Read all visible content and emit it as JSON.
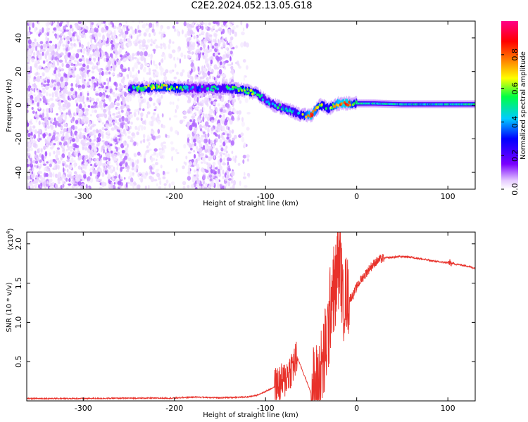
{
  "title": "C2E2.2024.052.13.05.G18",
  "chart_data": [
    {
      "type": "heatmap",
      "xlabel": "Height of straight line (km)",
      "ylabel": "Frequency (Hz)",
      "xlim": [
        -362,
        130
      ],
      "ylim": [
        -50,
        50
      ],
      "xticks": [
        -300,
        -200,
        -100,
        0,
        100
      ],
      "xtick_labels": [
        "-300",
        "-200",
        "-100",
        "0",
        "100"
      ],
      "yticks": [
        -40,
        -20,
        0,
        20,
        40
      ],
      "ytick_labels": [
        "-40",
        "-20",
        "0",
        "20",
        "40"
      ],
      "colorbar": {
        "label": "Normalized spectral amplitude",
        "range": [
          0,
          1
        ],
        "ticks": [
          0.0,
          0.2,
          0.4,
          0.6,
          0.8
        ],
        "tick_labels": [
          "0.0",
          "0.2",
          "0.4",
          "0.6",
          "0.8"
        ],
        "colormap": [
          "#ffffff",
          "#e6ccff",
          "#7a00ff",
          "#0000ff",
          "#00ccff",
          "#00ff44",
          "#ffff00",
          "#ff8800",
          "#ff0000",
          "#ff0088"
        ]
      },
      "ridge": {
        "x": [
          -250,
          -235,
          -215,
          -195,
          -180,
          -160,
          -140,
          -125,
          -110,
          -100,
          -90,
          -80,
          -70,
          -60,
          -50,
          -40,
          -30,
          -20,
          -10,
          0,
          20,
          50,
          80,
          110,
          130
        ],
        "y": [
          10,
          10,
          11,
          10,
          10,
          10,
          10,
          9,
          7,
          3,
          0,
          -2,
          -4,
          -6,
          -6,
          0,
          -2,
          1,
          1,
          1,
          1,
          0.5,
          0.5,
          0.5,
          0.5
        ],
        "amplitude": [
          0.5,
          0.55,
          0.65,
          0.6,
          0.4,
          0.45,
          0.5,
          0.6,
          0.55,
          0.45,
          0.5,
          0.45,
          0.5,
          0.55,
          0.85,
          0.6,
          0.55,
          0.8,
          0.85,
          0.5,
          0.45,
          0.45,
          0.45,
          0.45,
          0.5
        ]
      },
      "noise_regions": [
        {
          "x": [
            -362,
            -250
          ],
          "density": "high"
        },
        {
          "x": [
            -250,
            -210
          ],
          "density": "medium"
        },
        {
          "x": [
            -210,
            -185
          ],
          "density": "low"
        },
        {
          "x": [
            -185,
            -135
          ],
          "density": "high"
        },
        {
          "x": [
            -135,
            -118
          ],
          "density": "low"
        }
      ]
    },
    {
      "type": "line",
      "xlabel": "Height of straight line (km)",
      "ylabel": "SNR (10 * v/v)",
      "y_multiplier": "(x10",
      "y_multiplier_exp": "4",
      "y_multiplier_close": ")",
      "xlim": [
        -362,
        130
      ],
      "ylim": [
        0,
        2.15
      ],
      "xticks": [
        -300,
        -200,
        -100,
        0,
        100
      ],
      "xtick_labels": [
        "-300",
        "-200",
        "-100",
        "0",
        "100"
      ],
      "yticks": [
        0.5,
        1.0,
        1.5,
        2.0
      ],
      "ytick_labels": [
        "0.5",
        "1.0",
        "1.5",
        "2.0"
      ],
      "color": "#e8312a",
      "x": [
        -362,
        -300,
        -250,
        -200,
        -180,
        -150,
        -120,
        -110,
        -100,
        -90,
        -80,
        -75,
        -70,
        -65,
        -60,
        -55,
        -50,
        -45,
        -40,
        -35,
        -30,
        -27,
        -24,
        -21,
        -18,
        -15,
        -12,
        -8,
        -4,
        0,
        5,
        10,
        15,
        20,
        25,
        30,
        40,
        50,
        60,
        70,
        80,
        90,
        100,
        110,
        120,
        130
      ],
      "y": [
        0.03,
        0.03,
        0.035,
        0.035,
        0.05,
        0.04,
        0.05,
        0.07,
        0.12,
        0.18,
        0.25,
        0.35,
        0.45,
        0.55,
        0.4,
        0.25,
        0.1,
        0.15,
        0.3,
        0.6,
        1.0,
        1.5,
        1.35,
        1.7,
        1.8,
        1.2,
        1.4,
        1.3,
        1.35,
        1.45,
        1.55,
        1.62,
        1.7,
        1.76,
        1.8,
        1.82,
        1.83,
        1.84,
        1.83,
        1.81,
        1.79,
        1.77,
        1.76,
        1.74,
        1.72,
        1.69
      ],
      "spikes": [
        {
          "x": [
            -90,
            -65
          ],
          "amp": 0.25
        },
        {
          "x": [
            -50,
            -20
          ],
          "amp": 0.6
        },
        {
          "x": [
            -20,
            -8
          ],
          "amp": 0.5
        }
      ]
    }
  ]
}
